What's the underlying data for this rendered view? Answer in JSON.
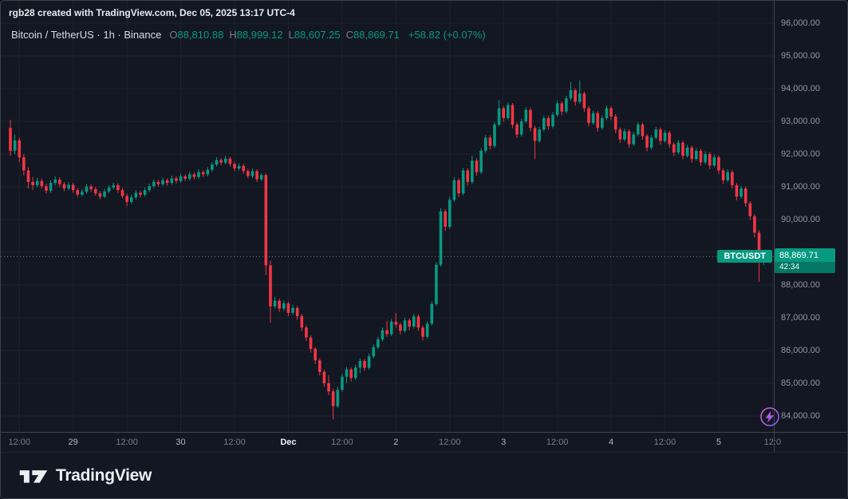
{
  "attribution": "rgb28 created with TradingView.com, Dec 05, 2025 13:17 UTC-4",
  "legend": {
    "symbol_title": "Bitcoin / TetherUS · 1h · Binance",
    "ohlc": [
      {
        "label": "O",
        "value": "88,810.88"
      },
      {
        "label": "H",
        "value": "88,999.12"
      },
      {
        "label": "L",
        "value": "88,607.25"
      },
      {
        "label": "C",
        "value": "88,869.71"
      }
    ],
    "change": "+58.82 (+0.07%)"
  },
  "price_label": {
    "symbol": "BTCUSDT",
    "price": "88,869.71",
    "countdown": "42:34",
    "value": 88869.71
  },
  "colors": {
    "up": "#089981",
    "down": "#f23645",
    "grid": "#1e222d",
    "muted": "#787b86",
    "badge": "#089981",
    "bg": "#131722"
  },
  "y_axis": {
    "ticks": [
      "96,000.00",
      "95,000.00",
      "94,000.00",
      "93,000.00",
      "92,000.00",
      "91,000.00",
      "90,000.00",
      "89,000.00",
      "88,000.00",
      "87,000.00",
      "86,000.00",
      "85,000.00",
      "84,000.00"
    ]
  },
  "footer": {
    "brand": "TradingView"
  },
  "boost": {
    "icon": "lightning-bolt"
  },
  "chart_data": {
    "type": "candlestick",
    "symbol": "BTCUSDT",
    "exchange": "Binance",
    "timeframe": "1h",
    "y_range": [
      84000,
      96000
    ],
    "y_step": 1000,
    "grid": true,
    "last_price": 88869.71,
    "x_ticks": [
      {
        "i": 2,
        "label": "12:00",
        "kind": "time"
      },
      {
        "i": 14,
        "label": "29",
        "kind": "day"
      },
      {
        "i": 26,
        "label": "12:00",
        "kind": "time"
      },
      {
        "i": 38,
        "label": "30",
        "kind": "day"
      },
      {
        "i": 50,
        "label": "12:00",
        "kind": "time"
      },
      {
        "i": 62,
        "label": "Dec",
        "kind": "month"
      },
      {
        "i": 74,
        "label": "12:00",
        "kind": "time"
      },
      {
        "i": 86,
        "label": "2",
        "kind": "day"
      },
      {
        "i": 98,
        "label": "12:00",
        "kind": "time"
      },
      {
        "i": 110,
        "label": "3",
        "kind": "day"
      },
      {
        "i": 122,
        "label": "12:00",
        "kind": "time"
      },
      {
        "i": 134,
        "label": "4",
        "kind": "day"
      },
      {
        "i": 146,
        "label": "12:00",
        "kind": "time"
      },
      {
        "i": 158,
        "label": "5",
        "kind": "day"
      },
      {
        "i": 170,
        "label": "12:0",
        "kind": "time"
      }
    ],
    "candles": [
      [
        92800,
        93050,
        91950,
        92100
      ],
      [
        92100,
        92600,
        92000,
        92420
      ],
      [
        92420,
        92500,
        91750,
        91900
      ],
      [
        91900,
        92000,
        91350,
        91500
      ],
      [
        91500,
        91600,
        90950,
        91150
      ],
      [
        91150,
        91300,
        90900,
        91050
      ],
      [
        91050,
        91280,
        90980,
        91180
      ],
      [
        91180,
        91250,
        90940,
        91020
      ],
      [
        91020,
        91100,
        90800,
        90880
      ],
      [
        90880,
        91200,
        90820,
        91120
      ],
      [
        91120,
        91320,
        91040,
        91220
      ],
      [
        91220,
        91290,
        91000,
        91080
      ],
      [
        91080,
        91150,
        90870,
        90950
      ],
      [
        90950,
        91140,
        90890,
        91060
      ],
      [
        91060,
        91120,
        90820,
        90900
      ],
      [
        90900,
        90960,
        90680,
        90760
      ],
      [
        90760,
        90930,
        90700,
        90850
      ],
      [
        90850,
        91090,
        90790,
        91010
      ],
      [
        91010,
        91080,
        90850,
        90930
      ],
      [
        90930,
        91000,
        90730,
        90800
      ],
      [
        90800,
        90870,
        90620,
        90700
      ],
      [
        90700,
        90940,
        90650,
        90860
      ],
      [
        90860,
        91060,
        90800,
        90980
      ],
      [
        90980,
        91130,
        90920,
        91050
      ],
      [
        91050,
        91110,
        90820,
        90900
      ],
      [
        90900,
        90970,
        90650,
        90720
      ],
      [
        90720,
        90790,
        90410,
        90540
      ],
      [
        90540,
        90760,
        90480,
        90680
      ],
      [
        90680,
        90900,
        90620,
        90820
      ],
      [
        90820,
        90880,
        90680,
        90760
      ],
      [
        90760,
        90980,
        90700,
        90900
      ],
      [
        90900,
        91100,
        90840,
        91020
      ],
      [
        91020,
        91230,
        90960,
        91150
      ],
      [
        91150,
        91210,
        91000,
        91080
      ],
      [
        91080,
        91280,
        91020,
        91200
      ],
      [
        91200,
        91260,
        91040,
        91120
      ],
      [
        91120,
        91340,
        91060,
        91260
      ],
      [
        91260,
        91320,
        91100,
        91180
      ],
      [
        91180,
        91400,
        91120,
        91320
      ],
      [
        91320,
        91380,
        91170,
        91250
      ],
      [
        91250,
        91460,
        91190,
        91380
      ],
      [
        91380,
        91440,
        91220,
        91300
      ],
      [
        91300,
        91530,
        91240,
        91450
      ],
      [
        91450,
        91510,
        91300,
        91380
      ],
      [
        91380,
        91600,
        91320,
        91520
      ],
      [
        91520,
        91760,
        91460,
        91680
      ],
      [
        91680,
        91900,
        91620,
        91820
      ],
      [
        91820,
        91880,
        91660,
        91740
      ],
      [
        91740,
        91950,
        91680,
        91860
      ],
      [
        91860,
        91920,
        91620,
        91700
      ],
      [
        91700,
        91770,
        91480,
        91560
      ],
      [
        91560,
        91720,
        91500,
        91640
      ],
      [
        91640,
        91700,
        91400,
        91480
      ],
      [
        91480,
        91550,
        91260,
        91330
      ],
      [
        91330,
        91560,
        91270,
        91480
      ],
      [
        91480,
        91540,
        91150,
        91230
      ],
      [
        91230,
        91420,
        91170,
        91360
      ],
      [
        91360,
        91410,
        88300,
        88600
      ],
      [
        88600,
        88750,
        86850,
        87350
      ],
      [
        87350,
        87640,
        87280,
        87520
      ],
      [
        87520,
        87590,
        87180,
        87280
      ],
      [
        87280,
        87530,
        87210,
        87440
      ],
      [
        87440,
        87500,
        87050,
        87150
      ],
      [
        87150,
        87400,
        87090,
        87300
      ],
      [
        87300,
        87360,
        86940,
        87050
      ],
      [
        87050,
        87120,
        86590,
        86700
      ],
      [
        86700,
        86770,
        86290,
        86400
      ],
      [
        86400,
        86460,
        85940,
        86050
      ],
      [
        86050,
        86110,
        85590,
        85700
      ],
      [
        85700,
        85760,
        85240,
        85350
      ],
      [
        85350,
        85410,
        84890,
        85000
      ],
      [
        85000,
        85240,
        84640,
        84750
      ],
      [
        84750,
        84830,
        83900,
        84300
      ],
      [
        84300,
        84890,
        84240,
        84800
      ],
      [
        84800,
        85290,
        84740,
        85200
      ],
      [
        85200,
        85500,
        85000,
        85420
      ],
      [
        85420,
        85480,
        85060,
        85160
      ],
      [
        85160,
        85560,
        85100,
        85480
      ],
      [
        85480,
        85760,
        85300,
        85680
      ],
      [
        85680,
        85740,
        85380,
        85470
      ],
      [
        85470,
        85900,
        85410,
        85820
      ],
      [
        85820,
        86190,
        85760,
        86100
      ],
      [
        86100,
        86420,
        86040,
        86340
      ],
      [
        86340,
        86700,
        86280,
        86620
      ],
      [
        86620,
        86900,
        86420,
        86500
      ],
      [
        86500,
        86960,
        86440,
        86880
      ],
      [
        86880,
        87150,
        86700,
        86790
      ],
      [
        86790,
        86850,
        86490,
        86600
      ],
      [
        86600,
        87000,
        86540,
        86920
      ],
      [
        86920,
        86980,
        86620,
        86730
      ],
      [
        86730,
        87120,
        86670,
        87040
      ],
      [
        87040,
        87100,
        86600,
        86700
      ],
      [
        86700,
        86760,
        86310,
        86420
      ],
      [
        86420,
        86900,
        86360,
        86820
      ],
      [
        86820,
        87500,
        86760,
        87420
      ],
      [
        87420,
        88700,
        87360,
        88620
      ],
      [
        88620,
        90350,
        88560,
        90250
      ],
      [
        90250,
        90320,
        89650,
        89780
      ],
      [
        89780,
        90700,
        89720,
        90600
      ],
      [
        90600,
        91300,
        90540,
        91200
      ],
      [
        91200,
        91270,
        90690,
        90800
      ],
      [
        90800,
        91580,
        90740,
        91500
      ],
      [
        91500,
        91570,
        91040,
        91150
      ],
      [
        91150,
        91950,
        91090,
        91800
      ],
      [
        91800,
        91870,
        91340,
        91450
      ],
      [
        91450,
        92180,
        91390,
        92100
      ],
      [
        92100,
        92580,
        92040,
        92500
      ],
      [
        92500,
        92570,
        92140,
        92250
      ],
      [
        92250,
        92980,
        92190,
        92900
      ],
      [
        92900,
        93650,
        92840,
        93400
      ],
      [
        93400,
        93470,
        92990,
        93100
      ],
      [
        93100,
        93580,
        93040,
        93500
      ],
      [
        93500,
        93560,
        92790,
        92900
      ],
      [
        92900,
        92970,
        92490,
        92600
      ],
      [
        92600,
        93080,
        92540,
        93000
      ],
      [
        93000,
        93430,
        92940,
        93350
      ],
      [
        93350,
        93410,
        92690,
        92800
      ],
      [
        92800,
        92870,
        91850,
        92400
      ],
      [
        92400,
        92830,
        92340,
        92750
      ],
      [
        92750,
        93180,
        92690,
        93100
      ],
      [
        93100,
        93170,
        92740,
        92850
      ],
      [
        92850,
        93280,
        92790,
        93200
      ],
      [
        93200,
        93630,
        93140,
        93550
      ],
      [
        93550,
        93610,
        93190,
        93300
      ],
      [
        93300,
        93780,
        93240,
        93700
      ],
      [
        93700,
        94200,
        93640,
        93950
      ],
      [
        93950,
        94010,
        93480,
        93600
      ],
      [
        93600,
        94250,
        93540,
        93850
      ],
      [
        93850,
        93910,
        93290,
        93400
      ],
      [
        93400,
        93470,
        92840,
        92950
      ],
      [
        92950,
        93330,
        92890,
        93250
      ],
      [
        93250,
        93310,
        92690,
        92800
      ],
      [
        92800,
        93180,
        92740,
        93100
      ],
      [
        93100,
        93480,
        93040,
        93400
      ],
      [
        93400,
        93460,
        93040,
        93150
      ],
      [
        93150,
        93220,
        92640,
        92750
      ],
      [
        92750,
        92810,
        92340,
        92450
      ],
      [
        92450,
        92780,
        92390,
        92700
      ],
      [
        92700,
        92760,
        92190,
        92300
      ],
      [
        92300,
        92680,
        92240,
        92600
      ],
      [
        92600,
        92980,
        92540,
        92900
      ],
      [
        92900,
        92960,
        92440,
        92550
      ],
      [
        92550,
        92610,
        92090,
        92200
      ],
      [
        92200,
        92580,
        92140,
        92500
      ],
      [
        92500,
        92830,
        92440,
        92750
      ],
      [
        92750,
        92810,
        92290,
        92400
      ],
      [
        92400,
        92730,
        92340,
        92650
      ],
      [
        92650,
        92710,
        92190,
        92300
      ],
      [
        92300,
        92360,
        91940,
        92050
      ],
      [
        92050,
        92430,
        91990,
        92350
      ],
      [
        92350,
        92410,
        91840,
        91950
      ],
      [
        91950,
        92280,
        91890,
        92200
      ],
      [
        92200,
        92260,
        91740,
        91850
      ],
      [
        91850,
        92180,
        91790,
        92100
      ],
      [
        92100,
        92160,
        91640,
        91750
      ],
      [
        91750,
        92080,
        91690,
        92000
      ],
      [
        92000,
        92060,
        91540,
        91650
      ],
      [
        91650,
        91980,
        91590,
        91900
      ],
      [
        91900,
        91960,
        91390,
        91500
      ],
      [
        91500,
        91560,
        91090,
        91200
      ],
      [
        91200,
        91530,
        91140,
        91450
      ],
      [
        91450,
        91510,
        90940,
        91050
      ],
      [
        91050,
        91110,
        90590,
        90700
      ],
      [
        90700,
        91030,
        90640,
        90950
      ],
      [
        90950,
        91010,
        90390,
        90500
      ],
      [
        90500,
        90560,
        89990,
        90100
      ],
      [
        90100,
        90160,
        89450,
        89600
      ],
      [
        89600,
        89680,
        88100,
        88750
      ],
      [
        88810.88,
        88999.12,
        88607.25,
        88869.71
      ]
    ]
  }
}
